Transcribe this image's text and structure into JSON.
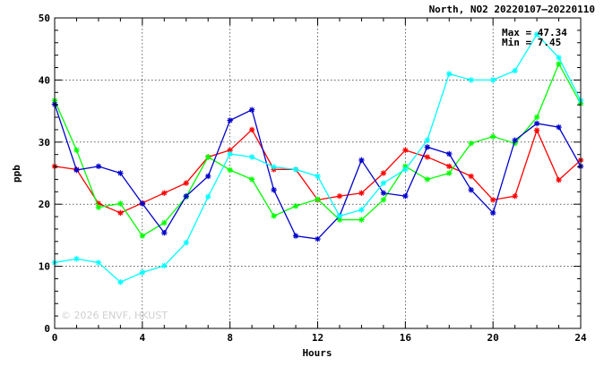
{
  "chart_data": {
    "type": "line",
    "title": "North, NO2 20220107–20220110",
    "xlabel": "Hours",
    "ylabel": "ppb",
    "xlim": [
      0,
      24
    ],
    "ylim": [
      0,
      50
    ],
    "xticks": [
      0,
      4,
      8,
      12,
      16,
      20,
      24
    ],
    "yticks": [
      0,
      10,
      20,
      30,
      40,
      50
    ],
    "grid": true,
    "annotations": {
      "max": "Max = 47.34",
      "min": "Min = 7.45"
    },
    "watermark": "© 2026  ENVF, HKUST",
    "x": [
      0,
      1,
      2,
      3,
      4,
      5,
      6,
      7,
      8,
      9,
      10,
      11,
      12,
      13,
      14,
      15,
      16,
      17,
      18,
      19,
      20,
      21,
      22,
      23,
      24
    ],
    "series": [
      {
        "color": "#ff0000",
        "values": [
          26.1,
          25.6,
          20.1,
          18.6,
          20.2,
          21.8,
          23.4,
          27.6,
          28.7,
          32.0,
          25.6,
          25.6,
          20.7,
          21.3,
          21.8,
          25.0,
          28.7,
          27.6,
          26.1,
          24.5,
          20.7,
          21.3,
          31.9,
          23.9,
          27.1
        ]
      },
      {
        "color": "#00ff00",
        "values": [
          36.7,
          28.7,
          19.5,
          20.1,
          14.9,
          17.0,
          21.2,
          27.6,
          25.5,
          24.0,
          18.1,
          19.7,
          20.8,
          17.5,
          17.5,
          20.7,
          26.1,
          24.0,
          25.0,
          29.8,
          30.9,
          29.8,
          34.0,
          42.6,
          36.2
        ]
      },
      {
        "color": "#0000cc",
        "values": [
          36.1,
          25.5,
          26.1,
          25.0,
          20.1,
          15.4,
          21.3,
          24.5,
          33.5,
          35.2,
          22.3,
          14.9,
          14.4,
          18.1,
          27.1,
          21.8,
          21.3,
          29.2,
          28.1,
          22.3,
          18.6,
          30.3,
          33.0,
          32.4,
          26.1
        ]
      },
      {
        "color": "#00ffff",
        "values": [
          10.6,
          11.2,
          10.6,
          7.45,
          9.0,
          10.1,
          13.8,
          21.2,
          28.1,
          27.6,
          26.0,
          25.6,
          24.5,
          18.1,
          19.1,
          23.4,
          25.6,
          30.3,
          41.0,
          40.0,
          40.0,
          41.5,
          47.34,
          43.6,
          36.7
        ]
      }
    ]
  }
}
